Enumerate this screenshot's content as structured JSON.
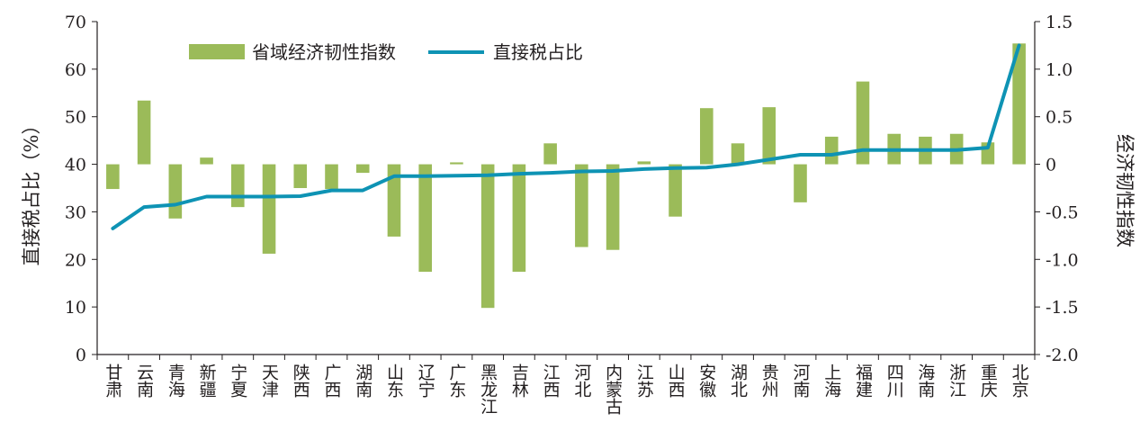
{
  "chart_data": {
    "type": "bar+line",
    "categories": [
      "甘肃",
      "云南",
      "青海",
      "新疆",
      "宁夏",
      "天津",
      "陕西",
      "广西",
      "湖南",
      "山东",
      "辽宁",
      "广东",
      "黑龙江",
      "吉林",
      "江西",
      "河北",
      "内蒙古",
      "江苏",
      "山西",
      "安徽",
      "湖北",
      "贵州",
      "河南",
      "上海",
      "福建",
      "四川",
      "海南",
      "浙江",
      "重庆",
      "北京"
    ],
    "series": [
      {
        "name": "省域经济韧性指数",
        "type": "bar",
        "axis": "right",
        "color": "#9bbb59",
        "values": [
          -0.26,
          0.67,
          -0.57,
          0.07,
          -0.45,
          -0.94,
          -0.25,
          -0.26,
          -0.09,
          -0.76,
          -1.13,
          0.02,
          -1.51,
          -1.13,
          0.22,
          -0.87,
          -0.9,
          0.03,
          -0.55,
          0.59,
          0.22,
          0.6,
          -0.4,
          0.29,
          0.87,
          0.32,
          0.29,
          0.32,
          0.23,
          1.27
        ]
      },
      {
        "name": "直接税占比",
        "type": "line",
        "axis": "left",
        "color": "#0e93b4",
        "values": [
          26.5,
          31,
          31.5,
          33.2,
          33.2,
          33.2,
          33.3,
          34.5,
          34.5,
          37.5,
          37.5,
          37.6,
          37.7,
          38,
          38.2,
          38.5,
          38.6,
          39,
          39.2,
          39.3,
          40,
          41,
          42,
          42,
          43,
          43,
          43,
          43,
          43.5,
          65
        ]
      }
    ],
    "ylabel": "直接税占比（%）",
    "y2label": "经济韧性指数",
    "ylim": [
      0,
      70
    ],
    "y2lim": [
      -2.0,
      1.5
    ],
    "yticks": [
      "0",
      "10",
      "20",
      "30",
      "40",
      "50",
      "60",
      "70"
    ],
    "y2ticks": [
      "-2.0",
      "-1.5",
      "-1.0",
      "-0.5",
      "0",
      "0.5",
      "1.0",
      "1.5"
    ],
    "legend_position": "top-left",
    "grid": false
  }
}
